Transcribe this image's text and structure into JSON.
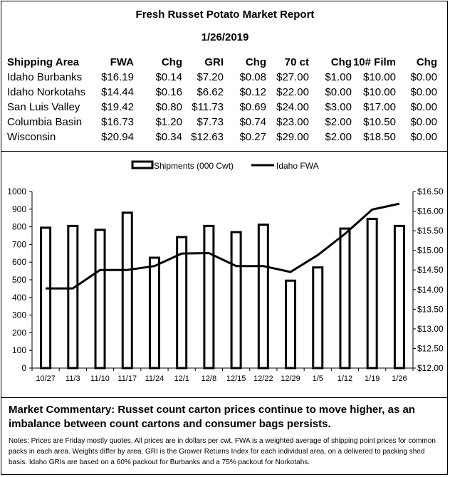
{
  "report": {
    "title": "Fresh Russet Potato Market Report",
    "date": "1/26/2019"
  },
  "price_table": {
    "headers": [
      "Shipping Area",
      "FWA",
      "Chg",
      "GRI",
      "Chg",
      "70 ct",
      "Chg",
      "10# Film",
      "Chg"
    ],
    "rows": [
      [
        "Idaho Burbanks",
        "$16.19",
        "$0.14",
        "$7.20",
        "$0.08",
        "$27.00",
        "$1.00",
        "$10.00",
        "$0.00"
      ],
      [
        "Idaho Norkotahs",
        "$14.44",
        "$0.16",
        "$6.62",
        "$0.12",
        "$22.00",
        "$0.00",
        "$10.00",
        "$0.00"
      ],
      [
        "San Luis Valley",
        "$19.42",
        "$0.80",
        "$11.73",
        "$0.69",
        "$24.00",
        "$3.00",
        "$17.00",
        "$0.00"
      ],
      [
        "Columbia Basin",
        "$16.73",
        "$1.20",
        "$7.73",
        "$0.74",
        "$23.00",
        "$2.00",
        "$10.50",
        "$0.00"
      ],
      [
        "Wisconsin",
        "$20.94",
        "$0.34",
        "$12.63",
        "$0.27",
        "$29.00",
        "$2.00",
        "$18.50",
        "$0.00"
      ]
    ]
  },
  "chart_data": {
    "type": "bar",
    "categories": [
      "10/27",
      "11/3",
      "11/10",
      "11/17",
      "11/24",
      "12/1",
      "12/8",
      "12/15",
      "12/22",
      "12/29",
      "1/5",
      "1/12",
      "1/19",
      "1/26"
    ],
    "series": [
      {
        "name": "Shipments (000 Cwt)",
        "type": "bar",
        "axis": "left",
        "values": [
          795,
          805,
          783,
          880,
          625,
          742,
          805,
          770,
          812,
          495,
          570,
          790,
          845,
          805
        ]
      },
      {
        "name": "Idaho FWA",
        "type": "line",
        "axis": "right",
        "values": [
          14.03,
          14.03,
          14.5,
          14.5,
          14.6,
          14.92,
          14.93,
          14.6,
          14.6,
          14.45,
          14.88,
          15.42,
          16.04,
          16.19
        ]
      }
    ],
    "y_left": {
      "min": 0,
      "max": 1000,
      "ticks": [
        "0",
        "100",
        "200",
        "300",
        "400",
        "500",
        "600",
        "700",
        "800",
        "900",
        "1000"
      ]
    },
    "y_right": {
      "min": 12.0,
      "max": 16.5,
      "ticks": [
        "$12.00",
        "$12.50",
        "$13.00",
        "$13.50",
        "$14.00",
        "$14.50",
        "$15.00",
        "$15.50",
        "$16.00",
        "$16.50"
      ]
    },
    "legend_position": "top-center",
    "grid": false
  },
  "commentary": "Market Commentary: Russet count carton prices continue to move higher, as an imbalance between count cartons and consumer bags persists.",
  "notes": "Notes: Prices are Friday mostly quotes. All prices are in dollars per cwt. FWA is a weighted average of shipping point prices for common packs in each area. Weights differ by area. GRI is the Grower Returns Index for each individual area, on a delivered to packing shed basis. Idaho GRIs are based on a 60% packout for Burbanks and a 75% packout for Norkotahs."
}
